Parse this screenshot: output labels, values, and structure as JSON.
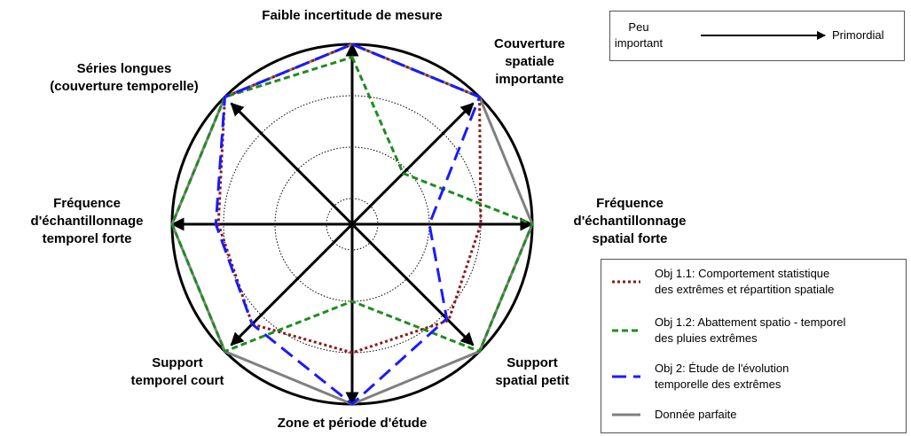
{
  "chart_data": {
    "type": "radar",
    "categories": [
      "Faible incertitude de mesure",
      "Couverture\nspatiale\nimportante",
      "Fréquence\nd'échantillonnage\nspatial forte",
      "Support\nspatial petit",
      "Zone et période d'étude",
      "Support\ntemporel court",
      "Fréquence\nd'échantillonnage\ntemporel forte",
      "Séries longues\n(couverture temporelle)"
    ],
    "rlim": [
      0,
      7
    ],
    "rticks": [
      1,
      3,
      5,
      7
    ],
    "series": [
      {
        "name": "Obj 1.1: Comportement statistique\ndes extrêmes et répartition spatiale",
        "color": "#8b1a1a",
        "style": "dotted",
        "values": [
          7,
          7,
          5,
          5.3,
          5,
          5.5,
          5.2,
          7
        ]
      },
      {
        "name": "Obj 1.2: Abattement spatio - temporel\ndes pluies extrêmes",
        "color": "#1e8c1e",
        "style": "dashed",
        "values": [
          6.5,
          2.8,
          7,
          7,
          3,
          7,
          7,
          7
        ]
      },
      {
        "name": "Obj 2: Étude de l'évolution\ntemporelle des extrêmes",
        "color": "#1a1aff",
        "style": "longdash",
        "values": [
          7,
          7,
          3,
          5.2,
          7,
          5.5,
          5.3,
          7
        ]
      },
      {
        "name": "Donnée parfaite",
        "color": "#808080",
        "style": "solid",
        "values": [
          7,
          7,
          7,
          7,
          7,
          7,
          7,
          7
        ]
      }
    ],
    "scale_note": {
      "from": "Peu\nimportant",
      "to": "Primordial"
    }
  }
}
